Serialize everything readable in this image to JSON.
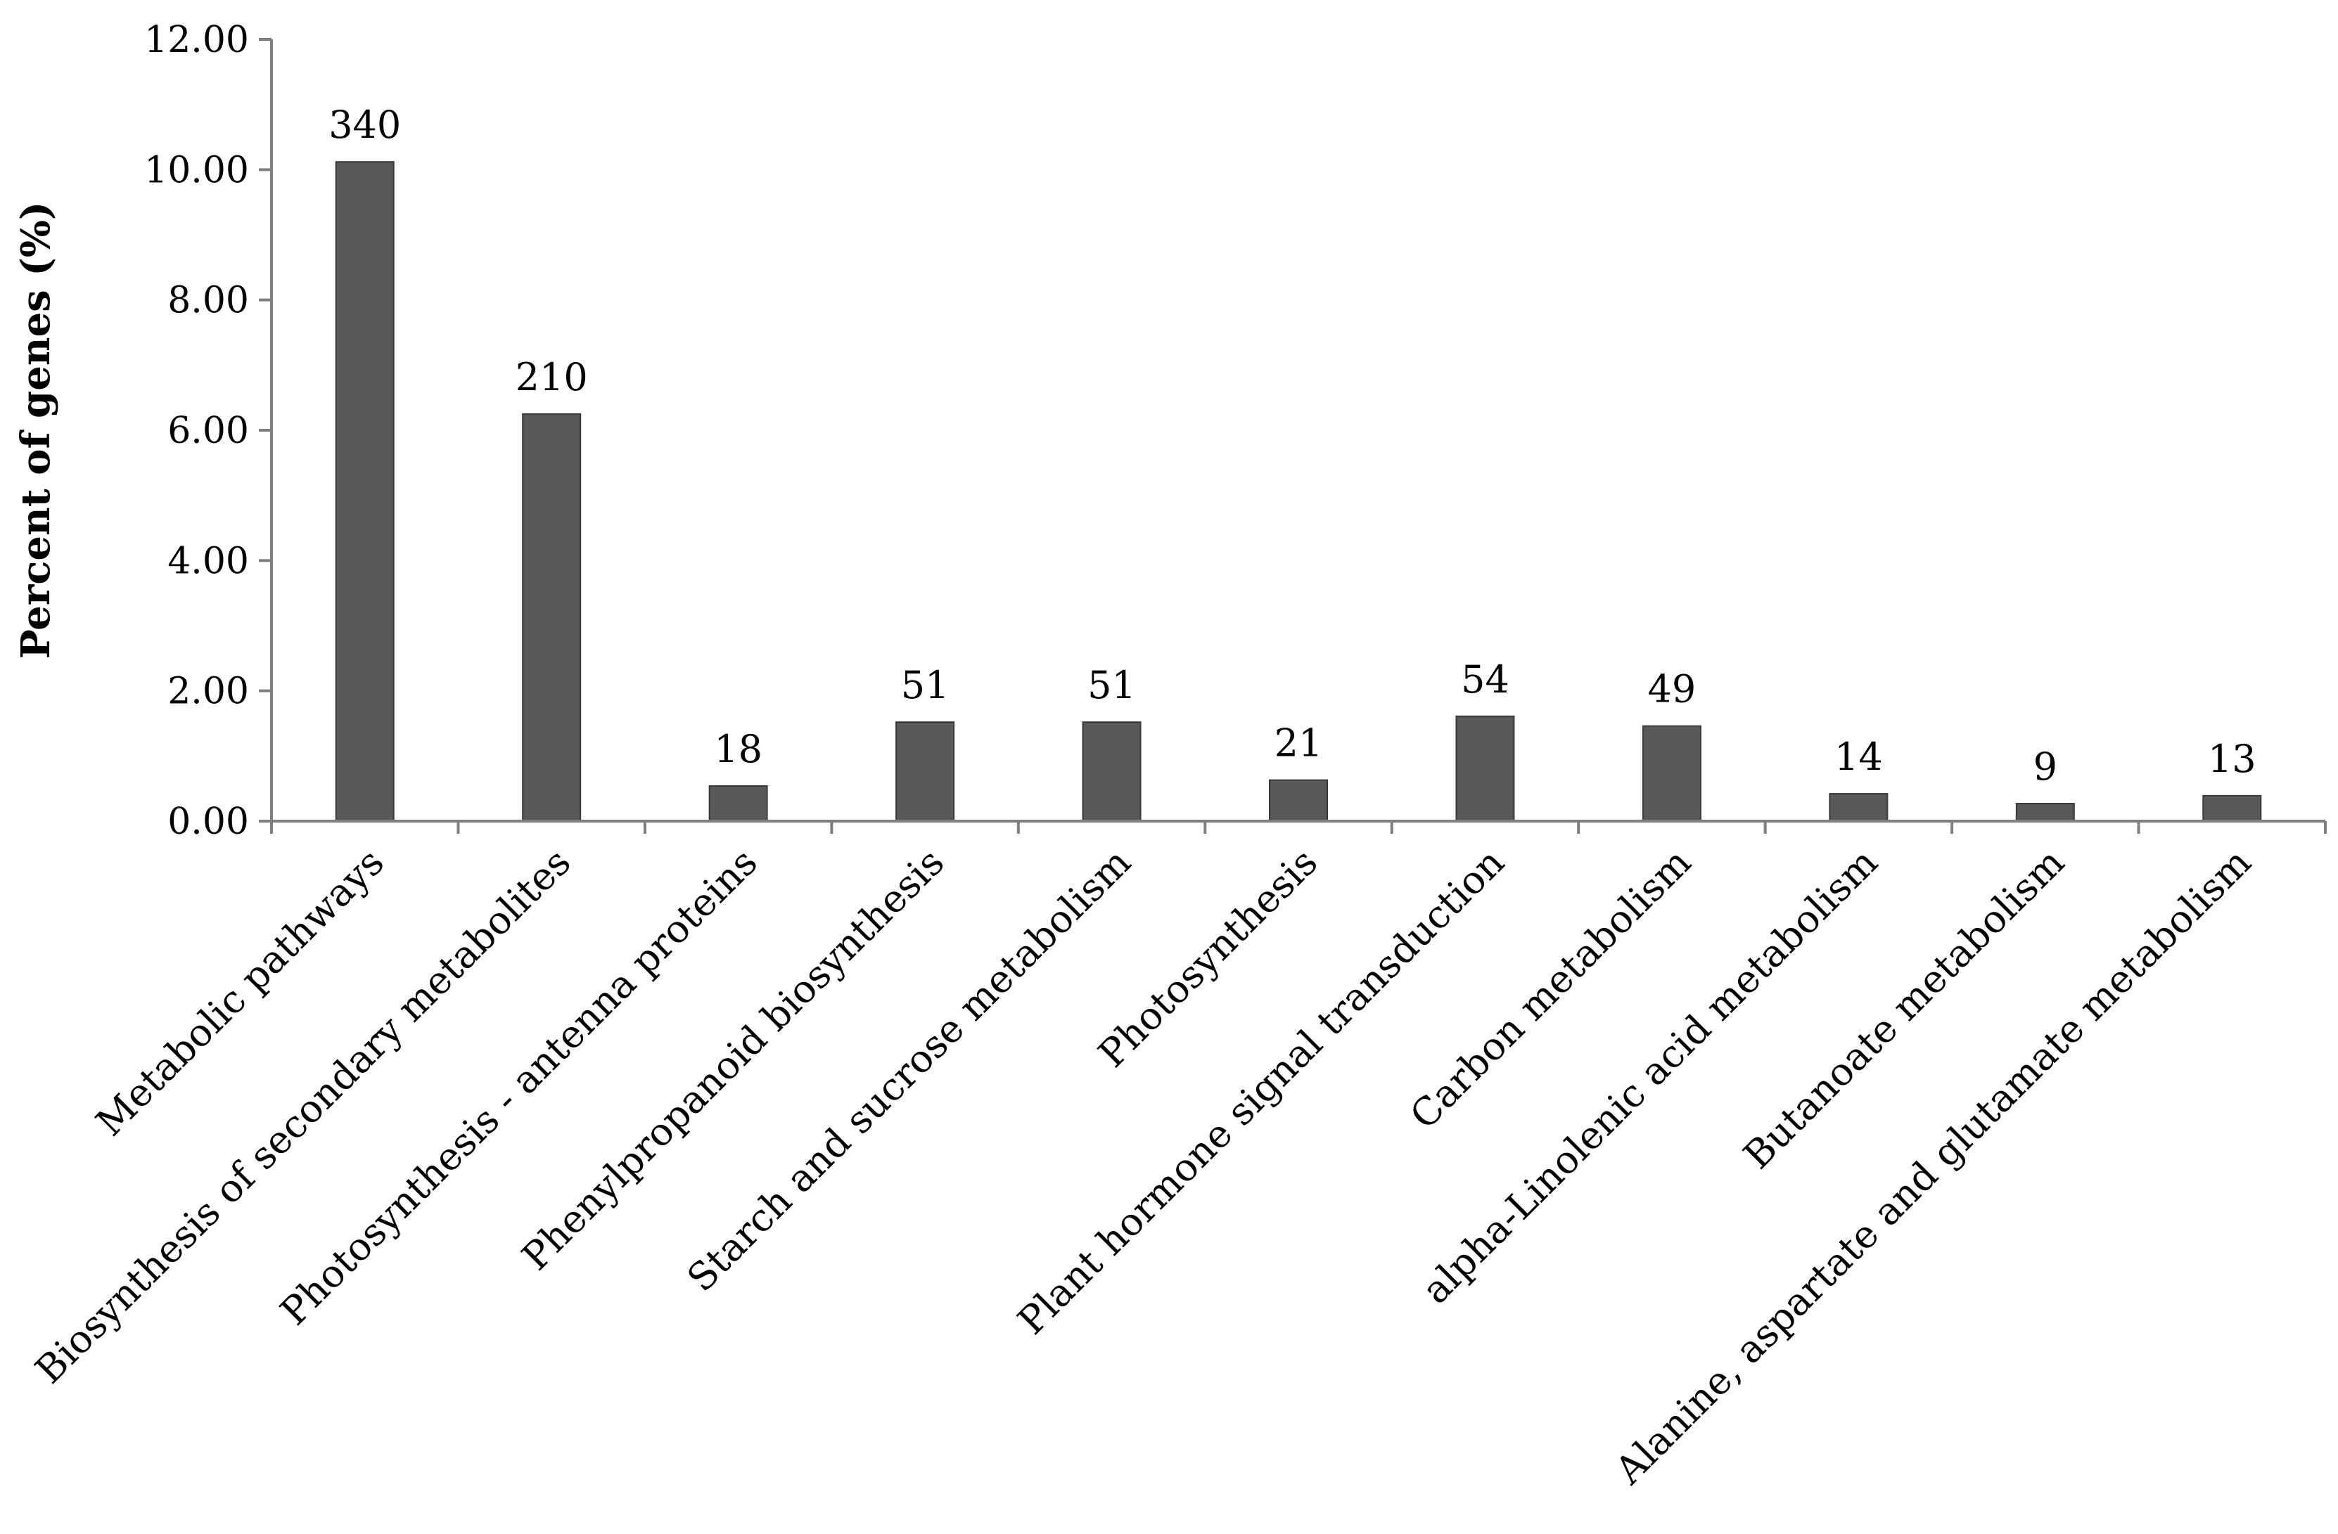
{
  "chart_data": {
    "type": "bar",
    "title": "",
    "xlabel": "",
    "ylabel": "Percent of genes (%)",
    "ylim": [
      0,
      12
    ],
    "yticks": [
      "0.00",
      "2.00",
      "4.00",
      "6.00",
      "8.00",
      "10.00",
      "12.00"
    ],
    "grid": false,
    "legend": "none",
    "bar_color": "#595959",
    "categories": [
      "Metabolic pathways",
      "Biosynthesis of secondary metabolites",
      "Photosynthesis - antenna proteins",
      "Phenylpropanoid biosynthesis",
      "Starch and sucrose metabolism",
      "Photosynthesis",
      "Plant hormone signal transduction",
      "Carbon metabolism",
      "alpha-Linolenic acid metabolism",
      "Butanoate metabolism",
      "Alanine, aspartate and glutamate metabolism"
    ],
    "values": [
      10.12,
      6.25,
      0.54,
      1.52,
      1.52,
      0.63,
      1.61,
      1.46,
      0.42,
      0.27,
      0.39
    ],
    "data_labels": [
      "340",
      "210",
      "18",
      "51",
      "51",
      "21",
      "54",
      "49",
      "14",
      "9",
      "13"
    ]
  }
}
